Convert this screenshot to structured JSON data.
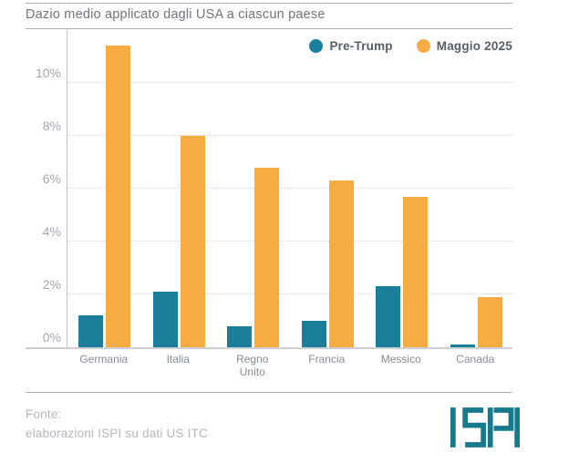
{
  "header": {
    "title": "Dazio medio applicato dagli USA a ciascun paese"
  },
  "chart_data": {
    "type": "bar",
    "title": "Dazio medio applicato dagli USA a ciascun paese",
    "categories": [
      "Germania",
      "Italia",
      "Regno Unito",
      "Francia",
      "Messico",
      "Canada"
    ],
    "series": [
      {
        "name": "Pre-Trump",
        "color": "#1b7f9b",
        "values": [
          1.2,
          2.1,
          0.8,
          1.0,
          2.3,
          0.1
        ]
      },
      {
        "name": "Maggio 2025",
        "color": "#f6ab43",
        "values": [
          11.4,
          8.0,
          6.8,
          6.3,
          5.7,
          1.9
        ]
      }
    ],
    "xlabel": "",
    "ylabel": "",
    "ylim": [
      0,
      12
    ],
    "yticks": [
      "0%",
      "2%",
      "4%",
      "6%",
      "8%",
      "10%"
    ],
    "grid": true,
    "legend_position": "top-right",
    "unit": "percent"
  },
  "footer": {
    "source_label": "Fonte:",
    "source_text": "elaborazioni ISPI su dati US ITC",
    "logo_text": "ISPI",
    "logo_color": "#16798c"
  }
}
